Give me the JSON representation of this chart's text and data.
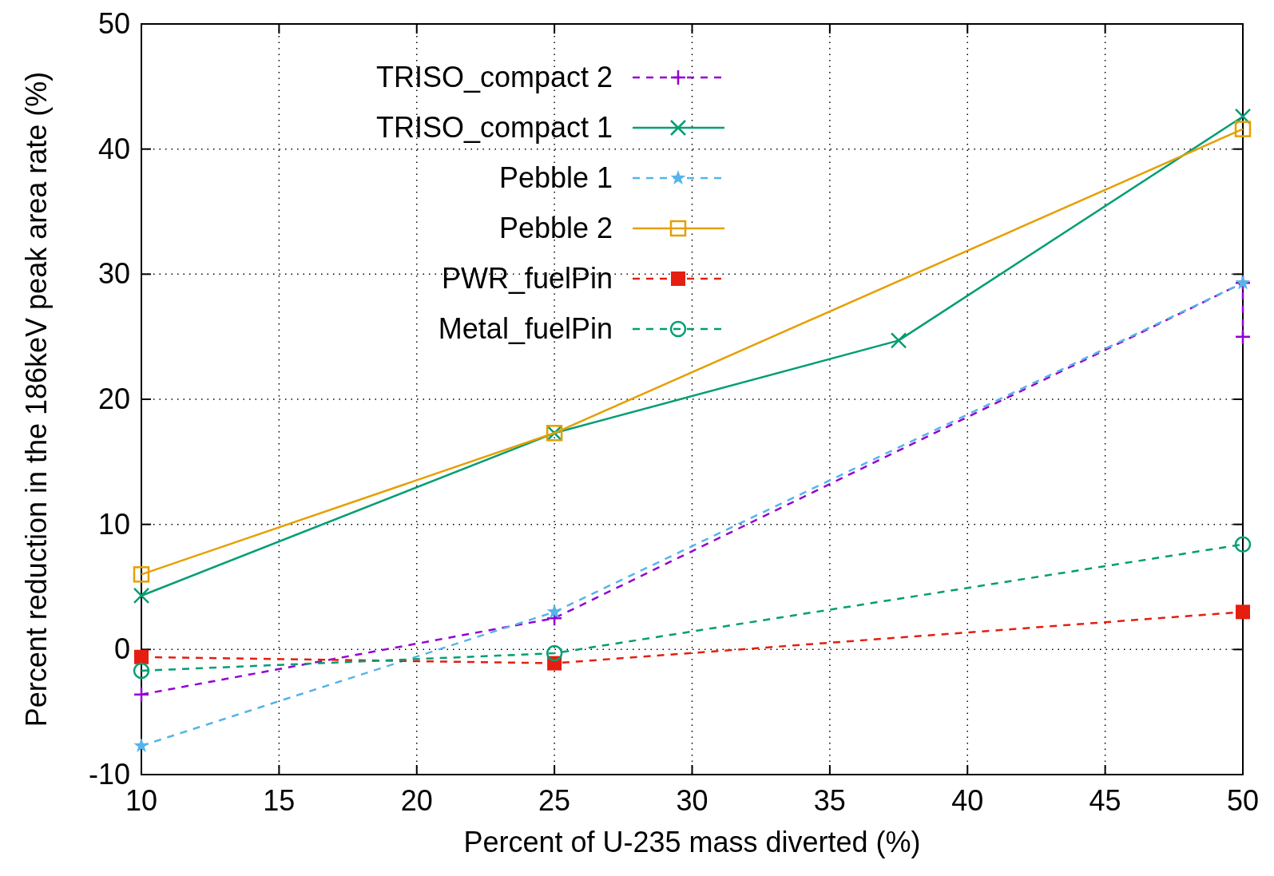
{
  "chart_data": {
    "type": "line",
    "xlabel": "Percent of U-235 mass diverted (%)",
    "ylabel": "Percent reduction in the 186keV peak area rate (%)",
    "xlim": [
      10,
      50
    ],
    "xticks": [
      10,
      15,
      20,
      25,
      30,
      35,
      40,
      45,
      50
    ],
    "ylim": [
      -10,
      50
    ],
    "yticks": [
      -10,
      0,
      10,
      20,
      30,
      40,
      50
    ],
    "grid": true,
    "legend": "top left",
    "series": [
      {
        "name": "TRISO_compact 2",
        "color": "#9400d3",
        "line_style": "dashed",
        "marker": "cross",
        "x": [
          10,
          25,
          50,
          50
        ],
        "values": [
          -3.6,
          2.5,
          29.3,
          25.0
        ]
      },
      {
        "name": "TRISO_compact 1",
        "color": "#009e73",
        "line_style": "solid",
        "marker": "cross",
        "x": [
          10,
          25,
          37.5,
          50
        ],
        "values": [
          4.3,
          17.3,
          24.7,
          42.6
        ]
      },
      {
        "name": "Pebble 1",
        "color": "#56b4e9",
        "line_style": "dashed",
        "marker": "star",
        "x": [
          10,
          25,
          50
        ],
        "values": [
          -7.7,
          3.0,
          29.3
        ]
      },
      {
        "name": "Pebble 2",
        "color": "#e69f00",
        "line_style": "solid",
        "marker": "square",
        "x": [
          10,
          25,
          50
        ],
        "values": [
          6.0,
          17.3,
          41.6
        ]
      },
      {
        "name": "PWR_fuelPin",
        "color": "#e51e10",
        "line_style": "dashed",
        "marker": "square",
        "x": [
          10,
          25,
          50
        ],
        "values": [
          -0.6,
          -1.1,
          3.0
        ]
      },
      {
        "name": "Metal_fuelPin",
        "color": "#009e73",
        "line_style": "dashed",
        "marker": "circle",
        "x": [
          10,
          25,
          50
        ],
        "values": [
          -1.7,
          -0.3,
          8.4
        ]
      }
    ]
  }
}
